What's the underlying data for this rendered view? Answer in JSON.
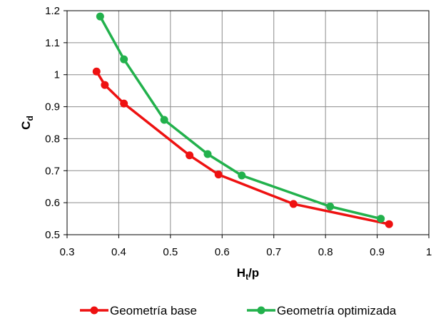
{
  "chart_data": {
    "type": "line",
    "title": "",
    "xlabel": {
      "main": "H",
      "sub": "t",
      "rest": "/p"
    },
    "ylabel": {
      "main": "C",
      "sub": "d"
    },
    "xlim": [
      0.3,
      1
    ],
    "ylim": [
      0.5,
      1.2
    ],
    "xticks": [
      0.3,
      0.4,
      0.5,
      0.6,
      0.7,
      0.8,
      0.9,
      1
    ],
    "xtick_labels": [
      "0.3",
      "0.4",
      "0.5",
      "0.6",
      "0.7",
      "0.8",
      "0.9",
      "1"
    ],
    "yticks": [
      0.5,
      0.6,
      0.7,
      0.8,
      0.9,
      1.0,
      1.1,
      1.2
    ],
    "ytick_labels": [
      "0.5",
      "0.6",
      "0.7",
      "0.8",
      "0.9",
      "1",
      "1.1",
      "1.2"
    ],
    "grid": true,
    "legend_position": "bottom",
    "series": [
      {
        "name": "Geometría base",
        "color": "#ee1111",
        "x": [
          0.357,
          0.373,
          0.41,
          0.537,
          0.593,
          0.738,
          0.923
        ],
        "y": [
          1.01,
          0.968,
          0.91,
          0.748,
          0.688,
          0.596,
          0.533
        ]
      },
      {
        "name": "Geometría optimizada",
        "color": "#22b14c",
        "x": [
          0.364,
          0.41,
          0.488,
          0.572,
          0.638,
          0.809,
          0.907
        ],
        "y": [
          1.182,
          1.048,
          0.859,
          0.752,
          0.685,
          0.588,
          0.55
        ]
      }
    ]
  }
}
